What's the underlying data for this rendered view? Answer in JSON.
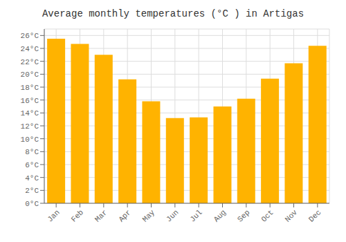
{
  "chart_data": {
    "type": "bar",
    "title": "Average monthly temperatures (°C ) in Artigas",
    "categories": [
      "Jan",
      "Feb",
      "Mar",
      "Apr",
      "May",
      "Jun",
      "Jul",
      "Aug",
      "Sep",
      "Oct",
      "Nov",
      "Dec"
    ],
    "values": [
      25.5,
      24.7,
      23.0,
      19.2,
      15.8,
      13.2,
      13.3,
      15.0,
      16.2,
      19.3,
      21.7,
      24.4
    ],
    "color": "#FFB300",
    "ylim": [
      0,
      27
    ],
    "yticks": [
      {
        "value": 0,
        "label": "0°C"
      },
      {
        "value": 2,
        "label": "2°C"
      },
      {
        "value": 4,
        "label": "4°C"
      },
      {
        "value": 6,
        "label": "6°C"
      },
      {
        "value": 8,
        "label": "8°C"
      },
      {
        "value": 10,
        "label": "10°C"
      },
      {
        "value": 12,
        "label": "12°C"
      },
      {
        "value": 14,
        "label": "14°C"
      },
      {
        "value": 16,
        "label": "16°C"
      },
      {
        "value": 18,
        "label": "18°C"
      },
      {
        "value": 20,
        "label": "20°C"
      },
      {
        "value": 22,
        "label": "22°C"
      },
      {
        "value": 24,
        "label": "24°C"
      },
      {
        "value": 26,
        "label": "26°C"
      }
    ],
    "grid": true
  }
}
